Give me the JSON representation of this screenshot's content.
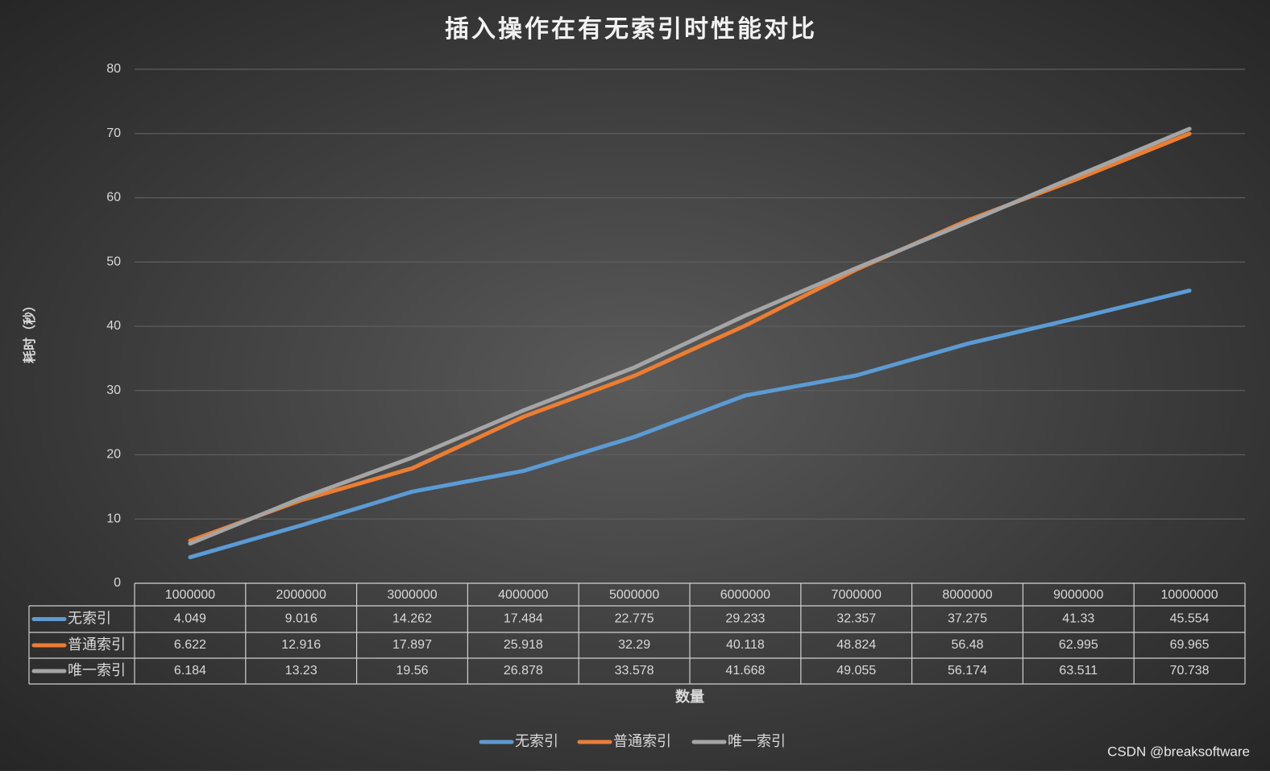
{
  "chart_data": {
    "type": "line",
    "title": "插入操作在有无索引时性能对比",
    "x_label": "数量",
    "y_label": "耗时（秒）",
    "categories": [
      "1000000",
      "2000000",
      "3000000",
      "4000000",
      "5000000",
      "6000000",
      "7000000",
      "8000000",
      "9000000",
      "10000000"
    ],
    "series": [
      {
        "name": "无索引",
        "color": "#5b9bd5",
        "values": [
          4.049,
          9.016,
          14.262,
          17.484,
          22.775,
          29.233,
          32.357,
          37.275,
          41.33,
          45.554
        ]
      },
      {
        "name": "普通索引",
        "color": "#ed7d31",
        "values": [
          6.622,
          12.916,
          17.897,
          25.918,
          32.29,
          40.118,
          48.824,
          56.48,
          62.995,
          69.965
        ]
      },
      {
        "name": "唯一索引",
        "color": "#a5a5a5",
        "values": [
          6.184,
          13.23,
          19.56,
          26.878,
          33.578,
          41.668,
          49.055,
          56.174,
          63.511,
          70.738
        ]
      }
    ],
    "ylim": [
      0,
      80
    ],
    "yticks": [
      0,
      10,
      20,
      30,
      40,
      50,
      60,
      70,
      80
    ],
    "grid": true,
    "legend": "bottom",
    "watermark": "CSDN @breaksoftware"
  }
}
